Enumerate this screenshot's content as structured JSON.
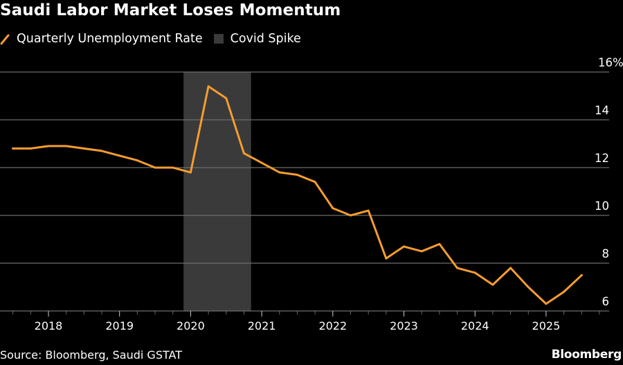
{
  "colors": {
    "background": "#000000",
    "line": "#F59D30",
    "covid_band": "#3A3A3A",
    "grid": "#6E6E6E",
    "text": "#FFFFFF"
  },
  "chart_data": {
    "type": "line",
    "title": "Saudi Labor Market Loses Momentum",
    "xlabel": "",
    "ylabel": "",
    "y_unit": "%",
    "ylim": [
      6,
      16
    ],
    "y_ticks": [
      6,
      8,
      10,
      12,
      14,
      16
    ],
    "y_tick_labels": [
      "6",
      "8",
      "10",
      "12",
      "14",
      "16%"
    ],
    "y_axis_position": "right",
    "xlim": [
      2017.25,
      2026.0
    ],
    "x_ticks": [
      2018,
      2019,
      2020,
      2021,
      2022,
      2023,
      2024,
      2025
    ],
    "x_tick_labels": [
      "2018",
      "2019",
      "2020",
      "2021",
      "2022",
      "2023",
      "2024",
      "2025"
    ],
    "grid": true,
    "legend": [
      {
        "label": "Quarterly Unemployment Rate",
        "kind": "line"
      },
      {
        "label": "Covid Spike",
        "kind": "box"
      }
    ],
    "legend_position": "top-left",
    "shaded_regions": [
      {
        "label": "Covid Spike",
        "x_start": 2019.9,
        "x_end": 2020.85
      }
    ],
    "series": [
      {
        "name": "Quarterly Unemployment Rate",
        "x": [
          2017.5,
          2017.75,
          2018.0,
          2018.25,
          2018.5,
          2018.75,
          2019.0,
          2019.25,
          2019.5,
          2019.75,
          2020.0,
          2020.25,
          2020.5,
          2020.75,
          2021.0,
          2021.25,
          2021.5,
          2021.75,
          2022.0,
          2022.25,
          2022.5,
          2022.75,
          2023.0,
          2023.25,
          2023.5,
          2023.75,
          2024.0,
          2024.25,
          2024.5,
          2024.75,
          2025.0,
          2025.25,
          2025.5
        ],
        "values": [
          12.8,
          12.8,
          12.9,
          12.9,
          12.8,
          12.7,
          12.5,
          12.3,
          12.0,
          12.0,
          11.8,
          15.4,
          14.9,
          12.6,
          12.2,
          11.8,
          11.7,
          11.4,
          10.3,
          10.0,
          10.2,
          8.2,
          8.7,
          8.5,
          8.8,
          7.8,
          7.6,
          7.1,
          7.8,
          7.0,
          6.3,
          6.8,
          7.5
        ]
      }
    ],
    "source": "Source: Bloomberg, Saudi GSTAT",
    "brand": "Bloomberg"
  }
}
